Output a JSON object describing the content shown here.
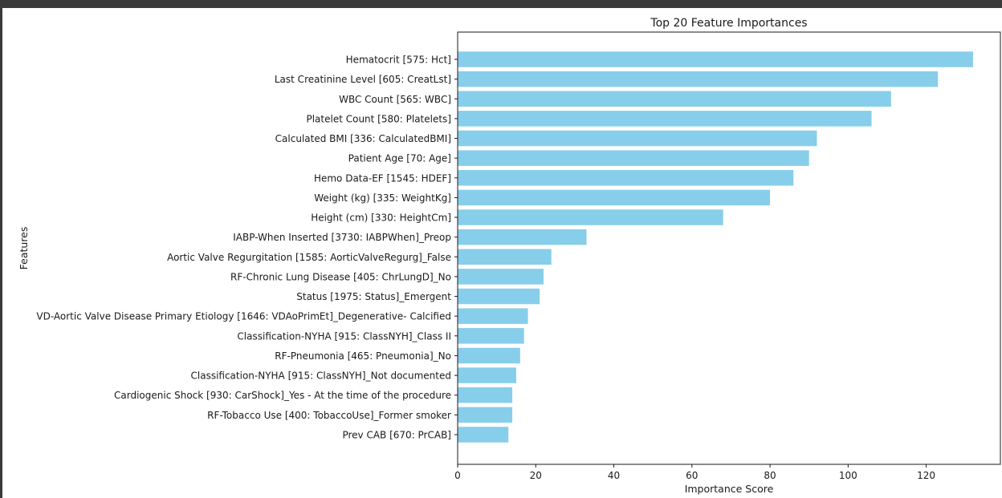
{
  "chart_data": {
    "type": "bar",
    "orientation": "horizontal",
    "title": "Top 20 Feature Importances",
    "xlabel": "Importance Score",
    "ylabel": "Features",
    "xlim": [
      0,
      139
    ],
    "xticks": [
      0,
      20,
      40,
      60,
      80,
      100,
      120
    ],
    "bar_color": "#87ceeb",
    "grid": false,
    "categories": [
      "Hematocrit [575: Hct]",
      "Last Creatinine Level [605: CreatLst]",
      "WBC Count [565: WBC]",
      "Platelet Count [580: Platelets]",
      "Calculated BMI [336: CalculatedBMI]",
      "Patient Age [70: Age]",
      "Hemo Data-EF [1545: HDEF]",
      "Weight (kg) [335: WeightKg]",
      "Height (cm) [330: HeightCm]",
      "IABP-When Inserted [3730: IABPWhen]_Preop",
      "Aortic Valve Regurgitation [1585: AorticValveRegurg]_False",
      "RF-Chronic Lung Disease [405: ChrLungD]_No",
      "Status [1975: Status]_Emergent",
      "VD-Aortic Valve Disease Primary Etiology [1646: VDAoPrimEt]_Degenerative- Calcified",
      "Classification-NYHA [915: ClassNYH]_Class II",
      "RF-Pneumonia [465: Pneumonia]_No",
      "Classification-NYHA [915: ClassNYH]_Not documented",
      "Cardiogenic Shock [930: CarShock]_Yes - At the time of the procedure",
      "RF-Tobacco Use [400: TobaccoUse]_Former smoker",
      "Prev CAB [670: PrCAB]"
    ],
    "values": [
      132,
      123,
      111,
      106,
      92,
      90,
      86,
      80,
      68,
      33,
      24,
      22,
      21,
      18,
      17,
      16,
      15,
      14,
      14,
      13
    ]
  }
}
